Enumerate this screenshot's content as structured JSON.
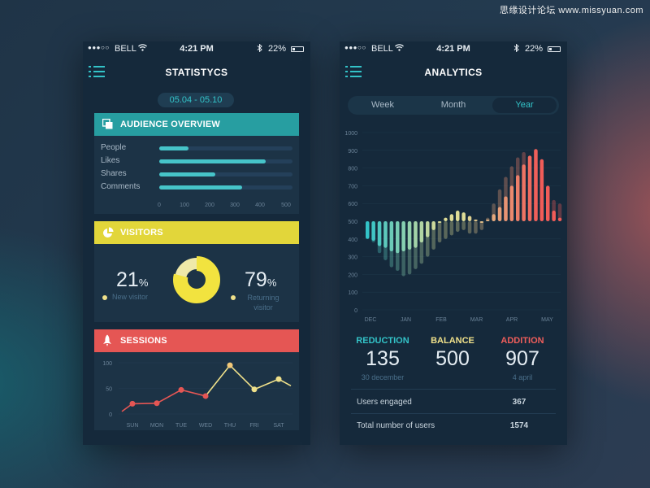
{
  "watermark": "思缘设计论坛 www.missyuan.com",
  "status": {
    "dots": "●●●○○",
    "carrier": "BELL",
    "time": "4:21 PM",
    "battery": "22%"
  },
  "left": {
    "title": "STATISTYCS",
    "date_range": "05.04 - 05.10",
    "audience": {
      "title": "AUDIENCE OVERVIEW",
      "color": "#279ea1",
      "ticks": [
        "0",
        "100",
        "200",
        "300",
        "400",
        "500"
      ],
      "bars": [
        {
          "label": "People",
          "value": 110
        },
        {
          "label": "Likes",
          "value": 400
        },
        {
          "label": "Shares",
          "value": 210
        },
        {
          "label": "Comments",
          "value": 310
        }
      ]
    },
    "visitors": {
      "title": "VISITORS",
      "color": "#e2d63a",
      "new_percent": "21",
      "new_label": "New visitor",
      "returning_percent": "79",
      "returning_label_1": "Returning",
      "returning_label_2": "visitor",
      "percent_sign": "%"
    },
    "sessions": {
      "title": "SESSIONS",
      "color": "#e55654",
      "chart_data": {
        "type": "line",
        "categories": [
          "SUN",
          "MON",
          "TUE",
          "WED",
          "THU",
          "FRI",
          "SAT"
        ],
        "y_ticks": [
          "100",
          "50",
          "0"
        ],
        "ylim": [
          0,
          100
        ],
        "values": [
          20,
          21,
          47,
          35,
          95,
          48,
          68
        ],
        "start_value": 5,
        "end_value": 55
      }
    }
  },
  "right": {
    "title": "ANALYTICS",
    "segments": [
      {
        "label": "Week",
        "active": false
      },
      {
        "label": "Month",
        "active": false
      },
      {
        "label": "Year",
        "active": true
      }
    ],
    "chart_data": {
      "type": "bar",
      "ylim": [
        0,
        1000
      ],
      "y_ticks": [
        "1000",
        "900",
        "800",
        "700",
        "600",
        "500",
        "400",
        "300",
        "200",
        "100",
        "0"
      ],
      "x_labels": [
        "DEC",
        "JAN",
        "FEB",
        "MAR",
        "APR",
        "MAY"
      ],
      "baseline": 500,
      "values": [
        400,
        390,
        360,
        350,
        330,
        320,
        330,
        340,
        350,
        380,
        410,
        450,
        500,
        520,
        540,
        560,
        550,
        530,
        510,
        500,
        510,
        540,
        580,
        640,
        700,
        760,
        820,
        870,
        907,
        850,
        700,
        560,
        520
      ],
      "shadow_values": [
        410,
        380,
        320,
        280,
        240,
        220,
        190,
        200,
        230,
        260,
        300,
        340,
        380,
        400,
        420,
        440,
        450,
        430,
        430,
        450,
        520,
        600,
        680,
        750,
        810,
        860,
        890,
        870,
        830,
        770,
        660,
        620,
        600
      ]
    },
    "stats": [
      {
        "label": "REDUCTION",
        "value": "135",
        "sub": "30 december",
        "color": "#33c3c8"
      },
      {
        "label": "BALANCE",
        "value": "500",
        "sub": "",
        "color": "#efe08a"
      },
      {
        "label": "ADDITION",
        "value": "907",
        "sub": "4 april",
        "color": "#f05e5b"
      }
    ],
    "rows": [
      {
        "label": "Users engaged",
        "value": "367"
      },
      {
        "label": "Total number of users",
        "value": "1574"
      }
    ]
  }
}
